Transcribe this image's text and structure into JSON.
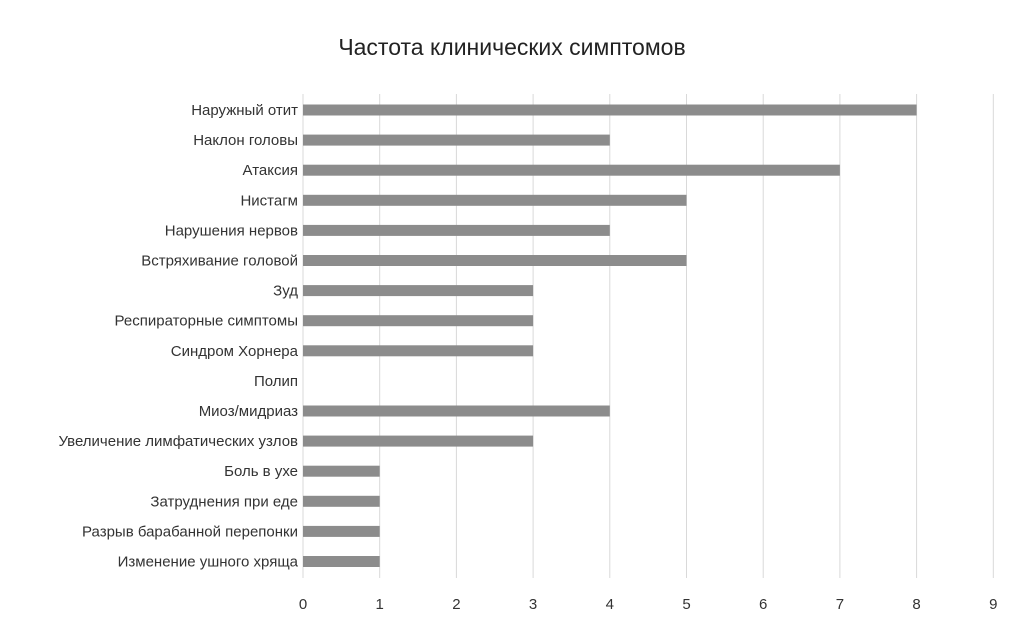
{
  "chart_data": {
    "type": "bar",
    "orientation": "horizontal",
    "title": "Частота клинических симптомов",
    "xlabel": "",
    "ylabel": "",
    "categories": [
      "Наружный отит",
      "Наклон головы",
      "Атаксия",
      "Нистагм",
      "Нарушения нервов",
      "Встряхивание головой",
      "Зуд",
      "Респираторные симптомы",
      "Синдром Хорнера",
      "Полип",
      "Миоз/мидриаз",
      "Увеличение лимфатических узлов",
      "Боль в ухе",
      "Затруднения при еде",
      "Разрыв барабанной перепонки",
      "Изменение ушного хряща"
    ],
    "values": [
      8,
      4,
      7,
      5,
      4,
      5,
      3,
      3,
      3,
      0,
      4,
      3,
      1,
      1,
      1,
      1
    ],
    "xlim": [
      0,
      9
    ],
    "xticks": [
      "0",
      "1",
      "2",
      "3",
      "4",
      "5",
      "6",
      "7",
      "8",
      "9"
    ],
    "grid": true,
    "legend": "none",
    "bar_color": "#8c8c8c",
    "grid_color": "#d9d9d9"
  }
}
